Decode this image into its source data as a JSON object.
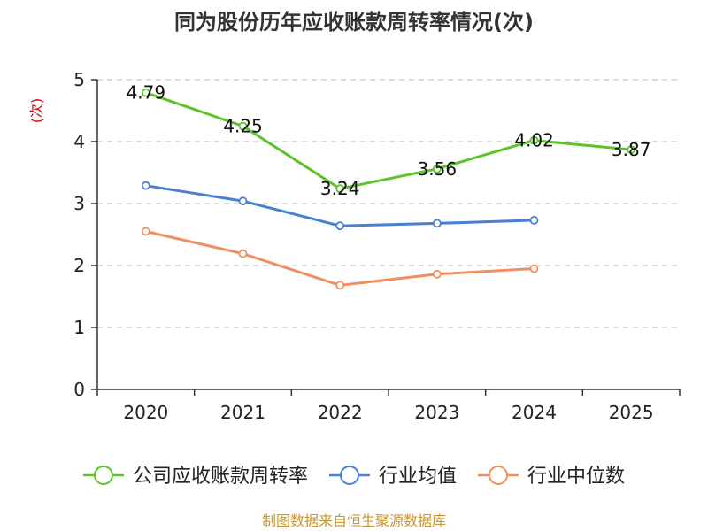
{
  "chart_data": {
    "type": "line",
    "title": "同为股份历年应收账款周转率情况(次)",
    "ylabel": "(次)",
    "xlabel": "",
    "categories": [
      "2020",
      "2021",
      "2022",
      "2023",
      "2024",
      "2025"
    ],
    "ylim": [
      0,
      5
    ],
    "yticks": [
      "0",
      "1",
      "2",
      "3",
      "4",
      "5"
    ],
    "grid": true,
    "legend_position": "bottom",
    "series": [
      {
        "name": "公司应收账款周转率",
        "color": "#5cc42a",
        "values": [
          4.79,
          4.25,
          3.24,
          3.56,
          4.02,
          3.87
        ],
        "labels": [
          "4.79",
          "4.25",
          "3.24",
          "3.56",
          "4.02",
          "3.87"
        ]
      },
      {
        "name": "行业均值",
        "color": "#4a7fd6",
        "values": [
          3.29,
          3.04,
          2.64,
          2.68,
          2.73,
          null
        ]
      },
      {
        "name": "行业中位数",
        "color": "#f28f5e",
        "values": [
          2.55,
          2.19,
          1.68,
          1.86,
          1.95,
          null
        ]
      }
    ]
  },
  "footer": {
    "source": "制图数据来自恒生聚源数据库"
  }
}
